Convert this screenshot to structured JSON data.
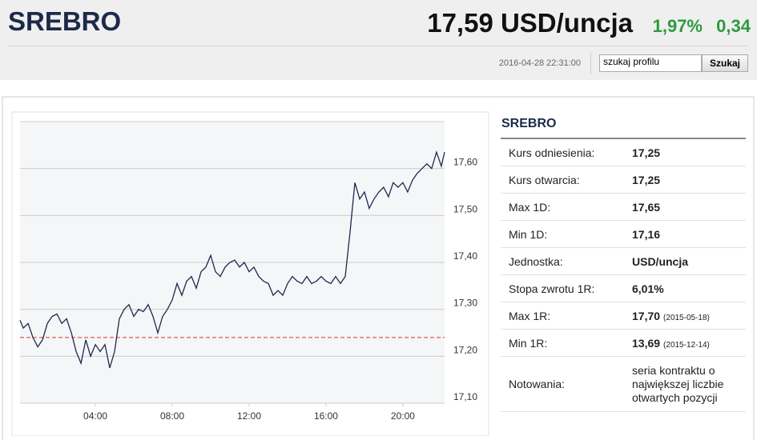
{
  "header": {
    "title": "SREBRO",
    "price": "17,59 USD/uncja",
    "change_pct": "1,97%",
    "change": "0,34",
    "timestamp": "2016-04-28 22:31:00",
    "search_placeholder": "szukaj profilu",
    "search_button": "Szukaj"
  },
  "chart_data": {
    "type": "line",
    "x": [
      0.08,
      0.25,
      0.5,
      0.75,
      1.0,
      1.25,
      1.5,
      1.75,
      2.0,
      2.25,
      2.5,
      2.75,
      3.0,
      3.25,
      3.5,
      3.75,
      4.0,
      4.25,
      4.5,
      4.75,
      5.0,
      5.25,
      5.5,
      5.75,
      6.0,
      6.25,
      6.5,
      6.75,
      7.0,
      7.25,
      7.5,
      7.75,
      8.0,
      8.25,
      8.5,
      8.75,
      9.0,
      9.25,
      9.5,
      9.75,
      10.0,
      10.25,
      10.5,
      10.75,
      11.0,
      11.25,
      11.5,
      11.75,
      12.0,
      12.25,
      12.5,
      12.75,
      13.0,
      13.25,
      13.5,
      13.75,
      14.0,
      14.25,
      14.5,
      14.75,
      15.0,
      15.25,
      15.5,
      15.75,
      16.0,
      16.25,
      16.5,
      16.75,
      17.0,
      17.25,
      17.5,
      17.75,
      18.0,
      18.25,
      18.5,
      18.75,
      19.0,
      19.25,
      19.5,
      19.75,
      20.0,
      20.25,
      20.5,
      20.75,
      21.0,
      21.25,
      21.5,
      21.75,
      22.0,
      22.17
    ],
    "series": [
      {
        "color": "#1c2a4a",
        "values": [
          17.277,
          17.26,
          17.27,
          17.24,
          17.22,
          17.235,
          17.27,
          17.285,
          17.29,
          17.27,
          17.28,
          17.25,
          17.21,
          17.185,
          17.235,
          17.2,
          17.225,
          17.21,
          17.225,
          17.175,
          17.21,
          17.28,
          17.3,
          17.31,
          17.285,
          17.3,
          17.295,
          17.31,
          17.285,
          17.25,
          17.285,
          17.3,
          17.32,
          17.355,
          17.33,
          17.36,
          17.37,
          17.345,
          17.38,
          17.39,
          17.415,
          17.38,
          17.37,
          17.39,
          17.4,
          17.405,
          17.39,
          17.4,
          17.38,
          17.39,
          17.37,
          17.36,
          17.355,
          17.33,
          17.34,
          17.33,
          17.355,
          17.37,
          17.36,
          17.355,
          17.37,
          17.355,
          17.36,
          17.37,
          17.36,
          17.355,
          17.37,
          17.355,
          17.37,
          17.465,
          17.57,
          17.535,
          17.55,
          17.515,
          17.535,
          17.55,
          17.56,
          17.54,
          17.57,
          17.56,
          17.57,
          17.55,
          17.575,
          17.59,
          17.6,
          17.61,
          17.6,
          17.635,
          17.605,
          17.635
        ]
      }
    ],
    "xlim": [
      0.08,
      22.17
    ],
    "ylim": [
      17.1,
      17.7
    ],
    "xticks": [
      {
        "value": 4,
        "label": "04:00"
      },
      {
        "value": 8,
        "label": "08:00"
      },
      {
        "value": 12,
        "label": "12:00"
      },
      {
        "value": 16,
        "label": "16:00"
      },
      {
        "value": 20,
        "label": "20:00"
      }
    ],
    "yticks": [
      {
        "value": 17.1,
        "label": "17,10"
      },
      {
        "value": 17.2,
        "label": "17,20"
      },
      {
        "value": 17.3,
        "label": "17,30"
      },
      {
        "value": 17.4,
        "label": "17,40"
      },
      {
        "value": 17.5,
        "label": "17,50"
      },
      {
        "value": 17.6,
        "label": "17,60"
      }
    ],
    "reference_line": 17.24,
    "reference_color": "#d9342b",
    "grid": true
  },
  "panel": {
    "title": "SREBRO",
    "rows": [
      {
        "label": "Kurs odniesienia:",
        "value": "17,25"
      },
      {
        "label": "Kurs otwarcia:",
        "value": "17,25"
      },
      {
        "label": "Max 1D:",
        "value": "17,65"
      },
      {
        "label": "Min 1D:",
        "value": "17,16"
      },
      {
        "label": "Jednostka:",
        "value": "USD/uncja"
      },
      {
        "label": "Stopa zwrotu 1R:",
        "value": "6,01%"
      },
      {
        "label": "Max 1R:",
        "value": "17,70",
        "note": "(2015-05-18)"
      },
      {
        "label": "Min 1R:",
        "value": "13,69",
        "note": "(2015-12-14)"
      },
      {
        "label": "Notowania:",
        "text": "seria kontraktu o największej liczbie otwartych pozycji"
      }
    ]
  }
}
